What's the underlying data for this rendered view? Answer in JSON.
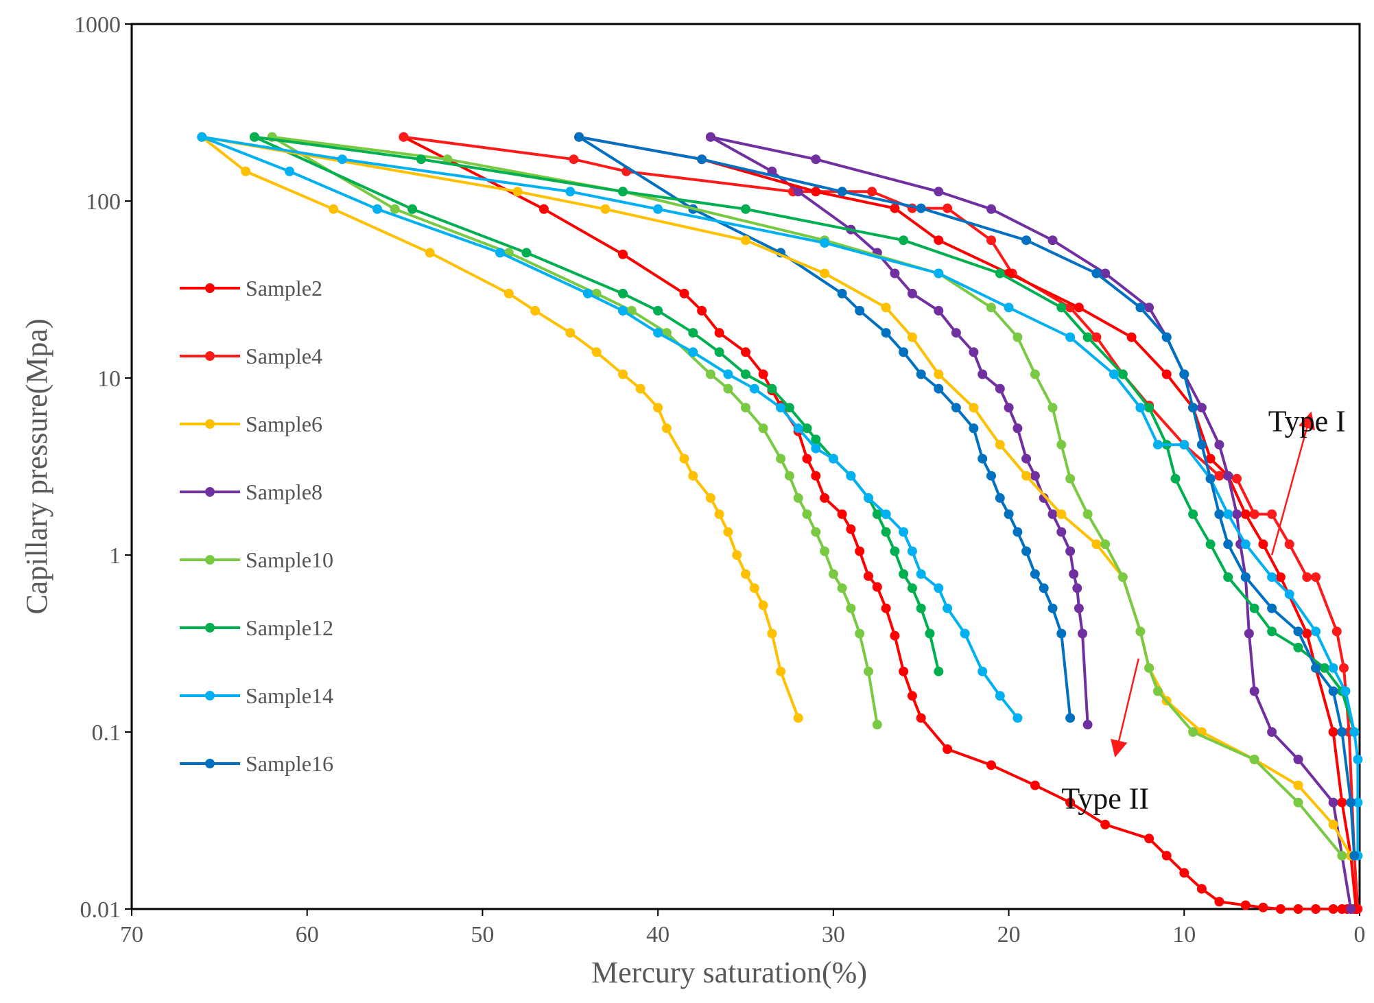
{
  "chart_data": {
    "type": "line",
    "title": "",
    "xlabel": "Mercury saturation(%)",
    "ylabel": "Capillary pressure(Mpa)",
    "x_reversed": true,
    "y_scale": "log",
    "xlim": [
      70,
      0
    ],
    "ylim": [
      0.01,
      1000
    ],
    "x_ticks": [
      "70",
      "60",
      "50",
      "40",
      "30",
      "20",
      "10",
      "0"
    ],
    "x_tick_values": [
      70,
      60,
      50,
      40,
      30,
      20,
      10,
      0
    ],
    "y_ticks": [
      "0.01",
      "0.1",
      "1",
      "10",
      "100",
      "1000"
    ],
    "y_tick_values": [
      0.01,
      0.1,
      1,
      10,
      100,
      1000
    ],
    "grid": false,
    "legend_position": "left",
    "annotations": [
      {
        "text": "Type I",
        "x": 3.0,
        "y": 5.0,
        "arrow_from": [
          5.0,
          1.0
        ],
        "arrow_to": [
          2.8,
          6.2
        ],
        "color": "#ff1a1a"
      },
      {
        "text": "Type II",
        "x": 14.5,
        "y": 0.037,
        "arrow_from": [
          12.6,
          0.26
        ],
        "arrow_to": [
          13.9,
          0.075
        ],
        "color": "#ff1a1a"
      }
    ],
    "series": [
      {
        "name": "Sample2",
        "color": "#ff0000",
        "x": [
          54.5,
          46.5,
          42.0,
          38.5,
          37.5,
          36.5,
          35.0,
          34.0,
          33.5,
          33.0,
          32.0,
          31.5,
          31.0,
          30.5,
          29.5,
          29.0,
          28.5,
          28.0,
          27.5,
          27.0,
          26.5,
          26.0,
          25.5,
          25.0,
          23.5,
          21.0,
          18.5,
          16.5,
          14.5,
          12.0,
          11.0,
          10.0,
          9.0,
          8.0,
          6.5,
          5.5,
          4.5,
          3.5,
          2.5,
          1.5,
          1.0,
          0.7,
          0.5,
          0.3,
          0.2
        ],
        "y": [
          230,
          90,
          50,
          30,
          24,
          18,
          14,
          10.5,
          8.5,
          7,
          5,
          3.5,
          2.8,
          2.1,
          1.7,
          1.4,
          1.05,
          0.76,
          0.66,
          0.5,
          0.35,
          0.22,
          0.16,
          0.12,
          0.08,
          0.065,
          0.05,
          0.04,
          0.03,
          0.025,
          0.02,
          0.016,
          0.013,
          0.011,
          0.0105,
          0.0102,
          0.01,
          0.01,
          0.01,
          0.01,
          0.01,
          0.01,
          0.01,
          0.01,
          0.01
        ]
      },
      {
        "name": "Sample4",
        "color": "#ff1a1a",
        "x": [
          54.5,
          44.8,
          41.8,
          32.3,
          27.8,
          25.5,
          23.5,
          21.0,
          19.8,
          16.5,
          15.0,
          13.5,
          12.0,
          10.0,
          8.0,
          7.0,
          6.0,
          5.0,
          4.0,
          3.0,
          2.5,
          1.3,
          0.9,
          0.6,
          0.3,
          0.1
        ],
        "y": [
          230,
          172,
          147,
          113,
          113,
          91,
          91,
          60,
          39,
          25,
          17,
          10.5,
          7,
          4.2,
          2.8,
          2.7,
          1.7,
          1.7,
          1.15,
          0.75,
          0.75,
          0.37,
          0.23,
          0.1,
          0.02,
          0.01
        ]
      },
      {
        "name": "Sample6",
        "color": "#ffc000",
        "x": [
          66.0,
          63.5,
          58.5,
          53.0,
          48.5,
          47.0,
          45.0,
          43.5,
          42.0,
          41.0,
          40.0,
          39.5,
          38.5,
          38.0,
          37.0,
          36.5,
          36.0,
          35.5,
          35.0,
          34.5,
          34.0,
          33.5,
          33.0,
          32.0
        ],
        "y": [
          230,
          147,
          90,
          51,
          30,
          24,
          18,
          14,
          10.5,
          8.7,
          6.8,
          5.2,
          3.5,
          2.8,
          2.1,
          1.7,
          1.35,
          1.0,
          0.78,
          0.65,
          0.52,
          0.36,
          0.22,
          0.12
        ]
      },
      {
        "name": "Sample8",
        "color": "#7030a0",
        "x": [
          37.0,
          33.5,
          32.0,
          29.0,
          27.5,
          26.5,
          25.5,
          24.0,
          23.0,
          22.0,
          21.5,
          20.5,
          20.0,
          19.5,
          19.0,
          18.5,
          18.0,
          17.5,
          17.0,
          16.5,
          16.3,
          16.1,
          16.0,
          15.8,
          15.5
        ],
        "y": [
          230,
          147,
          113,
          69,
          51,
          39,
          30,
          24,
          18,
          14,
          10.5,
          8.7,
          6.8,
          5.2,
          3.5,
          2.8,
          2.1,
          1.7,
          1.35,
          1.05,
          0.78,
          0.65,
          0.5,
          0.36,
          0.11
        ]
      },
      {
        "name": "Sample10",
        "color": "#7ac943",
        "x": [
          62.0,
          55.0,
          48.5,
          43.5,
          41.5,
          39.5,
          37.0,
          36.0,
          35.0,
          34.0,
          33.0,
          32.5,
          32.0,
          31.5,
          31.0,
          30.5,
          30.0,
          29.5,
          29.0,
          28.5,
          28.0,
          27.5
        ],
        "y": [
          230,
          90,
          51,
          30,
          24,
          18,
          10.5,
          8.7,
          6.8,
          5.2,
          3.5,
          2.8,
          2.1,
          1.7,
          1.35,
          1.05,
          0.78,
          0.65,
          0.5,
          0.36,
          0.22,
          0.11
        ]
      },
      {
        "name": "Sample12",
        "color": "#00b050",
        "x": [
          63.0,
          54.0,
          47.5,
          42.0,
          40.0,
          38.0,
          36.5,
          35.0,
          33.5,
          32.5,
          31.5,
          31.0,
          30.0,
          29.0,
          28.0,
          27.5,
          27.0,
          26.5,
          26.0,
          25.5,
          25.0,
          24.5,
          24.0
        ],
        "y": [
          230,
          90,
          51,
          30,
          24,
          18,
          14,
          10.5,
          8.7,
          6.8,
          5.2,
          4.5,
          3.5,
          2.8,
          2.1,
          1.7,
          1.35,
          1.05,
          0.78,
          0.65,
          0.5,
          0.36,
          0.22
        ]
      },
      {
        "name": "Sample14",
        "color": "#00b0f0",
        "x": [
          66.0,
          61.0,
          56.0,
          49.0,
          44.0,
          42.0,
          40.0,
          38.0,
          36.0,
          34.5,
          33.0,
          32.0,
          31.0,
          30.0,
          29.0,
          28.0,
          27.0,
          26.0,
          25.5,
          25.0,
          24.0,
          23.5,
          22.5,
          21.5,
          20.5,
          19.5
        ],
        "y": [
          230,
          147,
          90,
          51,
          30,
          24,
          18,
          14,
          10.5,
          8.7,
          6.8,
          5.2,
          4.0,
          3.5,
          2.8,
          2.1,
          1.7,
          1.35,
          1.05,
          0.78,
          0.65,
          0.5,
          0.36,
          0.22,
          0.16,
          0.12
        ]
      },
      {
        "name": "Sample16",
        "color": "#0070c0",
        "x": [
          44.5,
          38.0,
          33.0,
          29.5,
          28.5,
          27.0,
          26.0,
          25.0,
          24.0,
          23.0,
          22.0,
          21.5,
          21.0,
          20.5,
          20.0,
          19.5,
          19.0,
          18.5,
          18.0,
          17.5,
          17.0,
          16.5
        ],
        "y": [
          230,
          90,
          51,
          30,
          24,
          18,
          14,
          10.5,
          8.7,
          6.8,
          5.2,
          3.5,
          2.8,
          2.1,
          1.7,
          1.35,
          1.05,
          0.78,
          0.65,
          0.5,
          0.36,
          0.12
        ]
      },
      {
        "name": "",
        "color": "#ff0000",
        "legend": false,
        "x": [
          44.5,
          37.5,
          31.0,
          26.5,
          24.0,
          20.0,
          16.0,
          13.0,
          11.0,
          9.5,
          8.5,
          7.5,
          6.5,
          5.5,
          4.5,
          3.0,
          2.5,
          1.5,
          1.0,
          0.5,
          0.2
        ],
        "y": [
          230,
          172,
          113,
          91,
          60,
          39,
          25,
          17,
          10.5,
          6.8,
          3.5,
          2.8,
          1.7,
          1.15,
          0.75,
          0.36,
          0.23,
          0.1,
          0.04,
          0.02,
          0.01
        ]
      },
      {
        "name": "",
        "color": "#7030a0",
        "legend": false,
        "x": [
          37.0,
          31.0,
          24.0,
          21.0,
          17.5,
          14.5,
          12.0,
          11.0,
          10.0,
          9.0,
          8.0,
          7.5,
          7.0,
          6.8,
          6.5,
          6.3,
          6.0,
          5.0,
          3.5,
          1.5,
          0.5
        ],
        "y": [
          230,
          172,
          113,
          90,
          60,
          39,
          25,
          17,
          10.5,
          6.8,
          4.2,
          2.8,
          1.7,
          1.15,
          0.75,
          0.36,
          0.17,
          0.1,
          0.07,
          0.04,
          0.01
        ]
      },
      {
        "name": "",
        "color": "#ffc000",
        "legend": false,
        "x": [
          66.0,
          48.0,
          43.0,
          35.0,
          30.5,
          27.0,
          25.5,
          24.0,
          22.0,
          20.5,
          19.0,
          17.0,
          15.0,
          13.5,
          12.5,
          12.0,
          11.0,
          9.0,
          6.0,
          3.5,
          1.5,
          0.5
        ],
        "y": [
          230,
          113,
          90,
          60,
          39,
          25,
          17,
          10.5,
          6.8,
          4.2,
          2.8,
          1.7,
          1.15,
          0.75,
          0.37,
          0.23,
          0.15,
          0.1,
          0.07,
          0.05,
          0.03,
          0.02
        ]
      },
      {
        "name": "",
        "color": "#7ac943",
        "legend": false,
        "x": [
          62.0,
          52.0,
          42.0,
          30.5,
          24.0,
          21.0,
          19.5,
          18.5,
          17.5,
          17.0,
          16.5,
          15.5,
          14.5,
          13.5,
          12.5,
          12.0,
          11.5,
          9.5,
          6.0,
          3.5,
          1.0
        ],
        "y": [
          230,
          172,
          113,
          60,
          39,
          25,
          17,
          10.5,
          6.8,
          4.2,
          2.7,
          1.7,
          1.15,
          0.75,
          0.37,
          0.23,
          0.17,
          0.1,
          0.07,
          0.04,
          0.02
        ]
      },
      {
        "name": "",
        "color": "#00b050",
        "legend": false,
        "x": [
          63.0,
          53.5,
          42.0,
          35.0,
          26.0,
          20.5,
          17.0,
          15.5,
          13.5,
          12.0,
          11.0,
          10.5,
          9.5,
          8.5,
          7.5,
          6.0,
          5.0,
          3.5,
          2.0,
          1.0,
          0.3
        ],
        "y": [
          230,
          172,
          113,
          90,
          60,
          39,
          25,
          17,
          10.5,
          6.8,
          4.2,
          2.7,
          1.7,
          1.15,
          0.75,
          0.5,
          0.37,
          0.3,
          0.23,
          0.17,
          0.1
        ]
      },
      {
        "name": "",
        "color": "#00b0f0",
        "legend": false,
        "x": [
          66.0,
          58.0,
          45.0,
          40.0,
          30.5,
          24.0,
          20.0,
          16.5,
          14.0,
          12.5,
          11.5,
          10.0,
          8.5,
          7.5,
          6.5,
          5.0,
          4.0,
          2.5,
          1.5,
          0.8,
          0.3,
          0.1,
          0.1,
          0.1
        ],
        "y": [
          230,
          172,
          113,
          90,
          58,
          39,
          25,
          17,
          10.5,
          6.8,
          4.2,
          4.2,
          2.7,
          1.7,
          1.15,
          0.75,
          0.6,
          0.37,
          0.23,
          0.17,
          0.1,
          0.07,
          0.04,
          0.02
        ]
      },
      {
        "name": "",
        "color": "#0070c0",
        "legend": false,
        "x": [
          44.5,
          37.5,
          29.5,
          25.0,
          19.0,
          15.0,
          12.5,
          11.0,
          10.0,
          9.5,
          9.0,
          8.5,
          8.0,
          7.5,
          6.5,
          5.0,
          3.5,
          2.5,
          1.5,
          1.0,
          0.5,
          0.3
        ],
        "y": [
          230,
          172,
          113,
          91,
          60,
          39,
          25,
          17,
          10.5,
          6.8,
          4.2,
          2.7,
          1.7,
          1.15,
          0.75,
          0.5,
          0.37,
          0.23,
          0.17,
          0.1,
          0.04,
          0.02
        ]
      }
    ]
  }
}
